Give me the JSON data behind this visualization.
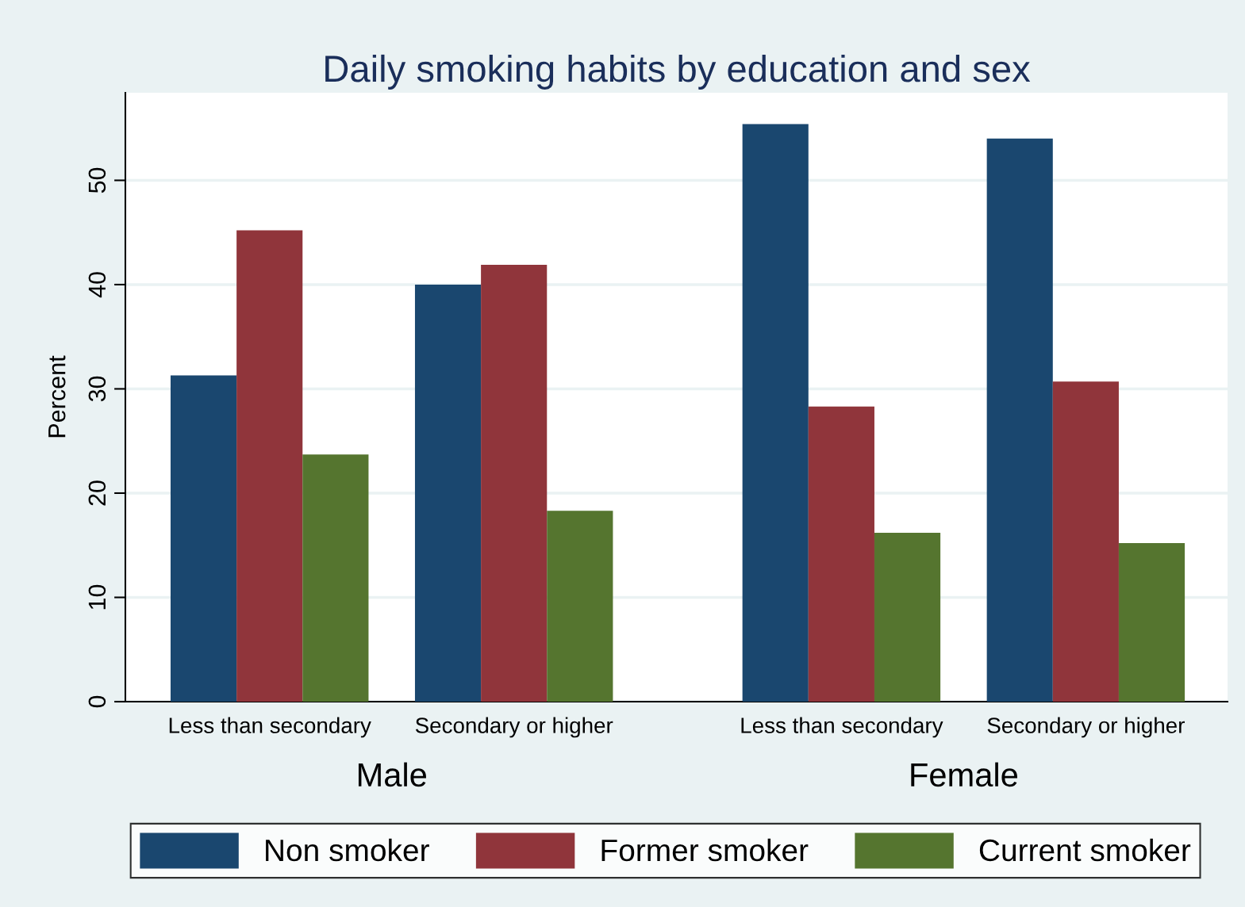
{
  "chart_data": {
    "type": "bar",
    "title": "Daily smoking habits by education and sex",
    "ylabel": "Percent",
    "categories": [
      "Less than secondary",
      "Secondary or higher",
      "Less than secondary",
      "Secondary or higher"
    ],
    "series": [
      {
        "name": "Non smoker",
        "color": "#1a476f",
        "values": [
          31.3,
          40.0,
          55.4,
          54.0
        ]
      },
      {
        "name": "Former smoker",
        "color": "#90353b",
        "values": [
          45.2,
          41.9,
          28.3,
          30.7
        ]
      },
      {
        "name": "Current smoker",
        "color": "#55752f",
        "values": [
          23.7,
          18.3,
          16.2,
          15.2
        ]
      }
    ],
    "annotations": [
      "Male",
      "Female"
    ],
    "ylim": [
      0,
      58.4
    ],
    "yticks": [
      0,
      10,
      20,
      30,
      40,
      50
    ],
    "grid": "y",
    "legend": "bottom"
  }
}
